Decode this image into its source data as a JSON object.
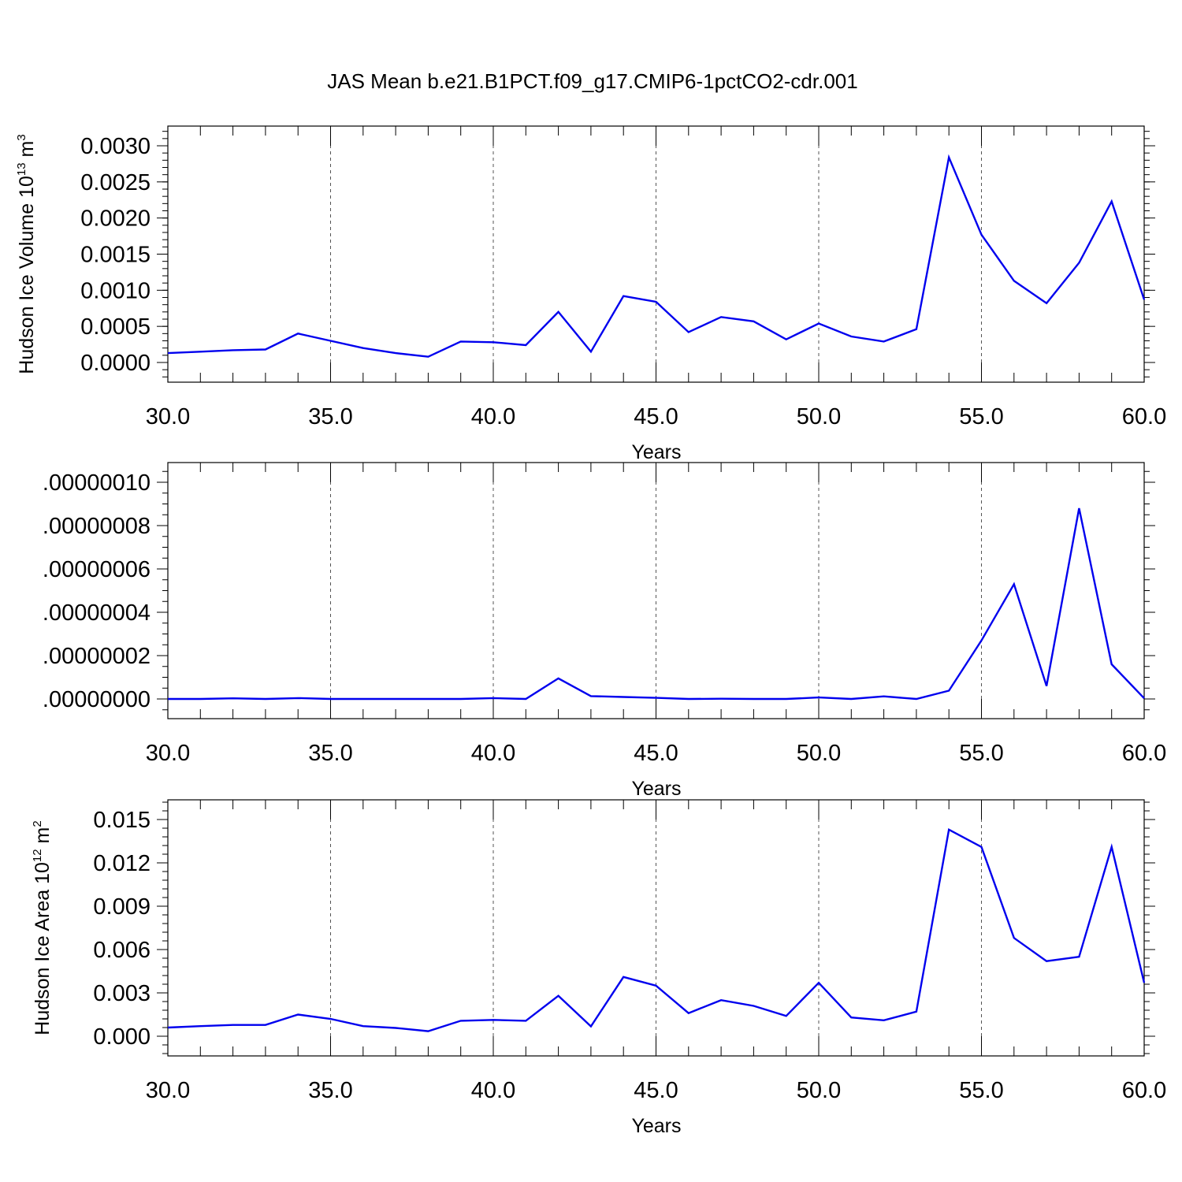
{
  "title": "JAS Mean b.e21.B1PCT.f09_g17.CMIP6-1pctCO2-cdr.001",
  "chart_data": [
    {
      "type": "line",
      "xlabel": "Years",
      "ylabel_main": "Hudson Ice Volume 10",
      "ylabel_exp": "13",
      "ylabel_unit": " m",
      "ylabel_unit_exp": "3",
      "xlim": [
        30,
        60
      ],
      "ylim": [
        0,
        0.003
      ],
      "yticks": [
        0.0,
        0.0005,
        0.001,
        0.0015,
        0.002,
        0.0025,
        0.003
      ],
      "ytick_labels": [
        "0.0000",
        "0.0005",
        "0.0010",
        "0.0015",
        "0.0020",
        "0.0025",
        "0.0030"
      ],
      "xticks": [
        30,
        35,
        40,
        45,
        50,
        55,
        60
      ],
      "xtick_labels": [
        "30.0",
        "35.0",
        "40.0",
        "45.0",
        "50.0",
        "55.0",
        "60.0"
      ],
      "grid": "vertical dashed at major x ticks",
      "series_color": "#0000ee",
      "x": [
        30,
        31,
        32,
        33,
        34,
        35,
        36,
        37,
        38,
        39,
        40,
        41,
        42,
        43,
        44,
        45,
        46,
        47,
        48,
        49,
        50,
        51,
        52,
        53,
        54,
        55,
        56,
        57,
        58,
        59,
        60
      ],
      "values": [
        0.00013,
        0.00015,
        0.00017,
        0.00018,
        0.0004,
        0.0003,
        0.0002,
        0.00013,
        8e-05,
        0.00029,
        0.00028,
        0.00024,
        0.0007,
        0.00015,
        0.00092,
        0.00084,
        0.00042,
        0.00063,
        0.00057,
        0.00032,
        0.00054,
        0.00036,
        0.00029,
        0.00046,
        0.00284,
        0.00177,
        0.00113,
        0.00082,
        0.00138,
        0.00223,
        0.00087
      ]
    },
    {
      "type": "line",
      "xlabel": "Years",
      "xlim": [
        30,
        60
      ],
      "ylim": [
        0,
        1e-07
      ],
      "yticks": [
        0.0,
        2e-08,
        4e-08,
        6e-08,
        8e-08,
        1e-07
      ],
      "ytick_labels": [
        ".00000000",
        ".00000002",
        ".00000004",
        ".00000006",
        ".00000008",
        ".00000010"
      ],
      "xticks": [
        30,
        35,
        40,
        45,
        50,
        55,
        60
      ],
      "xtick_labels": [
        "30.0",
        "35.0",
        "40.0",
        "45.0",
        "50.0",
        "55.0",
        "60.0"
      ],
      "grid": "vertical dashed at major x ticks",
      "series_color": "#0000ee",
      "x": [
        30,
        31,
        32,
        33,
        34,
        35,
        36,
        37,
        38,
        39,
        40,
        41,
        42,
        43,
        44,
        45,
        46,
        47,
        48,
        49,
        50,
        51,
        52,
        53,
        54,
        55,
        56,
        57,
        58,
        59,
        60
      ],
      "values": [
        0.0,
        0.0,
        3e-10,
        0.0,
        4e-10,
        0.0,
        0.0,
        0.0,
        0.0,
        0.0,
        4e-10,
        0.0,
        9.5e-09,
        1.3e-09,
        9e-10,
        5e-10,
        0.0,
        1e-10,
        0.0,
        0.0,
        7e-10,
        0.0,
        1.2e-09,
        0.0,
        3.8e-09,
        2.7e-08,
        5.3e-08,
        6e-09,
        8.8e-08,
        1.6e-08,
        3e-10
      ]
    },
    {
      "type": "line",
      "xlabel": "Years",
      "ylabel_main": "Hudson Ice Area 10",
      "ylabel_exp": "12",
      "ylabel_unit": " m",
      "ylabel_unit_exp": "2",
      "xlim": [
        30,
        60
      ],
      "ylim": [
        0,
        0.015
      ],
      "yticks": [
        0.0,
        0.003,
        0.006,
        0.009,
        0.012,
        0.015
      ],
      "ytick_labels": [
        "0.000",
        "0.003",
        "0.006",
        "0.009",
        "0.012",
        "0.015"
      ],
      "xticks": [
        30,
        35,
        40,
        45,
        50,
        55,
        60
      ],
      "xtick_labels": [
        "30.0",
        "35.0",
        "40.0",
        "45.0",
        "50.0",
        "55.0",
        "60.0"
      ],
      "grid": "vertical dashed at major x ticks",
      "series_color": "#0000ee",
      "x": [
        30,
        31,
        32,
        33,
        34,
        35,
        36,
        37,
        38,
        39,
        40,
        41,
        42,
        43,
        44,
        45,
        46,
        47,
        48,
        49,
        50,
        51,
        52,
        53,
        54,
        55,
        56,
        57,
        58,
        59,
        60
      ],
      "values": [
        0.0006,
        0.0007,
        0.00078,
        0.00078,
        0.0015,
        0.0012,
        0.0007,
        0.00057,
        0.00035,
        0.00107,
        0.00113,
        0.00107,
        0.0028,
        0.00068,
        0.0041,
        0.0035,
        0.0016,
        0.0025,
        0.0021,
        0.0014,
        0.0037,
        0.0013,
        0.0011,
        0.0017,
        0.0143,
        0.0131,
        0.0068,
        0.0052,
        0.0055,
        0.0131,
        0.0037
      ]
    }
  ]
}
